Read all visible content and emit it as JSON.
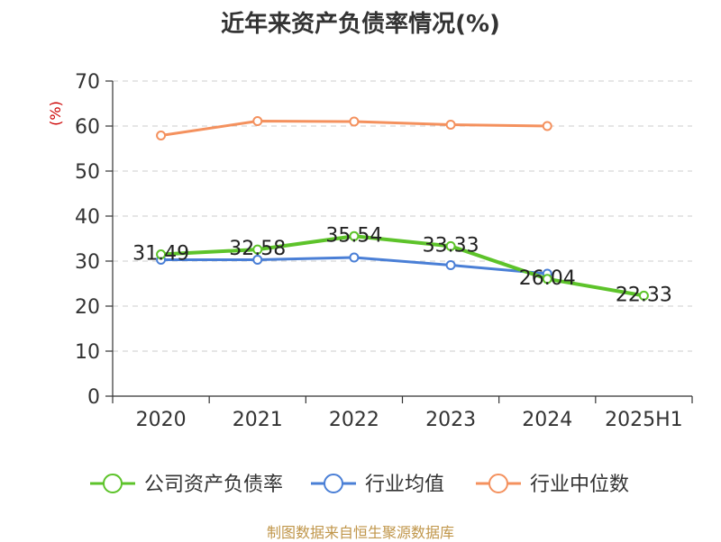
{
  "chart_data": {
    "type": "line",
    "title": "近年来资产负债率情况(%)",
    "ylabel": "(%)",
    "xlabel": "",
    "categories": [
      "2020",
      "2021",
      "2022",
      "2023",
      "2024",
      "2025H1"
    ],
    "ylim": [
      0,
      70
    ],
    "yticks": [
      0,
      10,
      20,
      30,
      40,
      50,
      60,
      70
    ],
    "grid": true,
    "legend_position": "bottom",
    "series": [
      {
        "name": "公司资产负债率",
        "color": "#5dc32a",
        "values": [
          31.49,
          32.58,
          35.54,
          33.33,
          26.04,
          22.33
        ],
        "labels": [
          "31.49",
          "32.58",
          "35.54",
          "33.33",
          "26.04",
          "22.33"
        ]
      },
      {
        "name": "行业均值",
        "color": "#4a7fd6",
        "values": [
          30.3,
          30.3,
          30.8,
          29.1,
          27.2,
          null
        ]
      },
      {
        "name": "行业中位数",
        "color": "#f4915e",
        "values": [
          57.9,
          61.1,
          61.0,
          60.3,
          60.0,
          null
        ]
      }
    ]
  },
  "source": "制图数据来自恒生聚源数据库"
}
